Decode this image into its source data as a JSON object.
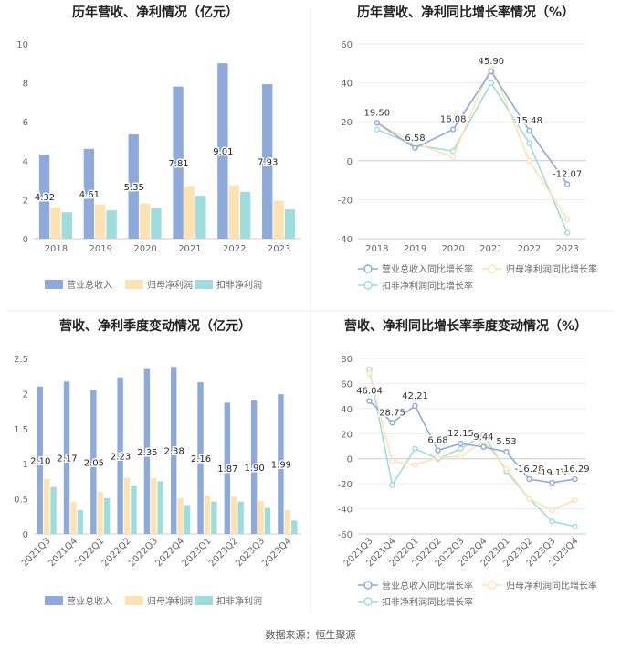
{
  "footer": {
    "source": "数据来源：恒生聚源"
  },
  "colors": {
    "bar_revenue": "#8eaadb",
    "bar_netprofit": "#fde2b3",
    "bar_deducted": "#9fdcdc",
    "line_revenue": "#8eaadb",
    "line_netprofit": "#fde2b3",
    "line_deducted": "#9fdcdc"
  },
  "chart_data": [
    {
      "type": "bar",
      "title": "历年营收、净利情况（亿元）",
      "categories": [
        "2018",
        "2019",
        "2020",
        "2021",
        "2022",
        "2023"
      ],
      "ylim": [
        0,
        10
      ],
      "yticks": [
        0,
        2,
        4,
        6,
        8,
        10
      ],
      "grid": false,
      "legend_position": "bottom",
      "series": [
        {
          "name": "营业总收入",
          "values": [
            4.32,
            4.61,
            5.35,
            7.81,
            9.01,
            7.93
          ],
          "labels": [
            "4.32",
            "4.61",
            "5.35",
            "7.81",
            "9.01",
            "7.93"
          ]
        },
        {
          "name": "归母净利润",
          "values": [
            1.6,
            1.75,
            1.8,
            2.7,
            2.75,
            1.95
          ]
        },
        {
          "name": "扣非净利润",
          "values": [
            1.35,
            1.45,
            1.55,
            2.2,
            2.4,
            1.5
          ]
        }
      ]
    },
    {
      "type": "line",
      "title": "历年营收、净利同比增长率情况（%）",
      "categories": [
        "2018",
        "2019",
        "2020",
        "2021",
        "2022",
        "2023"
      ],
      "ylim": [
        -40,
        60
      ],
      "yticks": [
        -40,
        -20,
        0,
        20,
        40,
        60
      ],
      "grid": true,
      "legend_position": "bottom",
      "series": [
        {
          "name": "营业总收入同比增长率",
          "values": [
            19.5,
            6.58,
            16.08,
            45.9,
            15.48,
            -12.07
          ],
          "labels": [
            "19.50",
            "6.58",
            "16.08",
            "45.90",
            "15.48",
            "-12.07"
          ]
        },
        {
          "name": "归母净利润同比增长率",
          "values": [
            19.5,
            9,
            2,
            49,
            0,
            -30
          ]
        },
        {
          "name": "扣非净利润同比增长率",
          "values": [
            16,
            8,
            5,
            40,
            9,
            -37
          ]
        }
      ]
    },
    {
      "type": "bar",
      "title": "营收、净利季度变动情况（亿元）",
      "categories": [
        "2021Q3",
        "2021Q4",
        "2022Q1",
        "2022Q2",
        "2022Q3",
        "2022Q4",
        "2023Q1",
        "2023Q2",
        "2023Q3",
        "2023Q4"
      ],
      "ylim": [
        0,
        2.5
      ],
      "yticks": [
        0,
        0.5,
        1,
        1.5,
        2,
        2.5
      ],
      "ytick_labels": [
        "0",
        "0.5",
        "1",
        "1.5",
        "2",
        "2.5"
      ],
      "grid": false,
      "legend_position": "bottom",
      "series": [
        {
          "name": "营业总收入",
          "values": [
            2.1,
            2.17,
            2.05,
            2.23,
            2.35,
            2.38,
            2.16,
            1.87,
            1.9,
            1.99
          ],
          "labels": [
            "2.10",
            "2.17",
            "2.05",
            "2.23",
            "2.35",
            "2.38",
            "2.16",
            "1.87",
            "1.90",
            "1.99"
          ]
        },
        {
          "name": "归母净利润",
          "values": [
            0.78,
            0.46,
            0.6,
            0.8,
            0.8,
            0.51,
            0.55,
            0.53,
            0.47,
            0.34
          ]
        },
        {
          "name": "扣非净利润",
          "values": [
            0.67,
            0.34,
            0.51,
            0.69,
            0.75,
            0.41,
            0.46,
            0.46,
            0.37,
            0.19
          ]
        }
      ]
    },
    {
      "type": "line",
      "title": "营收、净利同比增长率季度变动情况（%）",
      "categories": [
        "2021Q3",
        "2021Q4",
        "2022Q1",
        "2022Q2",
        "2022Q3",
        "2022Q4",
        "2023Q1",
        "2023Q2",
        "2023Q3",
        "2023Q4"
      ],
      "ylim": [
        -60,
        80
      ],
      "yticks": [
        -60,
        -40,
        -20,
        0,
        20,
        40,
        60,
        80
      ],
      "grid": true,
      "legend_position": "bottom",
      "series": [
        {
          "name": "营业总收入同比增长率",
          "values": [
            46.04,
            28.75,
            42.21,
            6.68,
            12.15,
            9.44,
            5.53,
            -16.28,
            -19.15,
            -16.29
          ],
          "labels": [
            "46.04",
            "28.75",
            "42.21",
            "6.68",
            "12.15",
            "9.44",
            "5.53",
            "-16.28",
            "-19.15",
            "-16.29"
          ]
        },
        {
          "name": "归母净利润同比增长率",
          "values": [
            68,
            -2,
            -5,
            1,
            2,
            14,
            -8,
            -32,
            -41,
            -33
          ]
        },
        {
          "name": "扣非净利润同比增长率",
          "values": [
            71,
            -21,
            8,
            0,
            8,
            19,
            -10,
            -32,
            -50,
            -54
          ]
        }
      ]
    }
  ]
}
